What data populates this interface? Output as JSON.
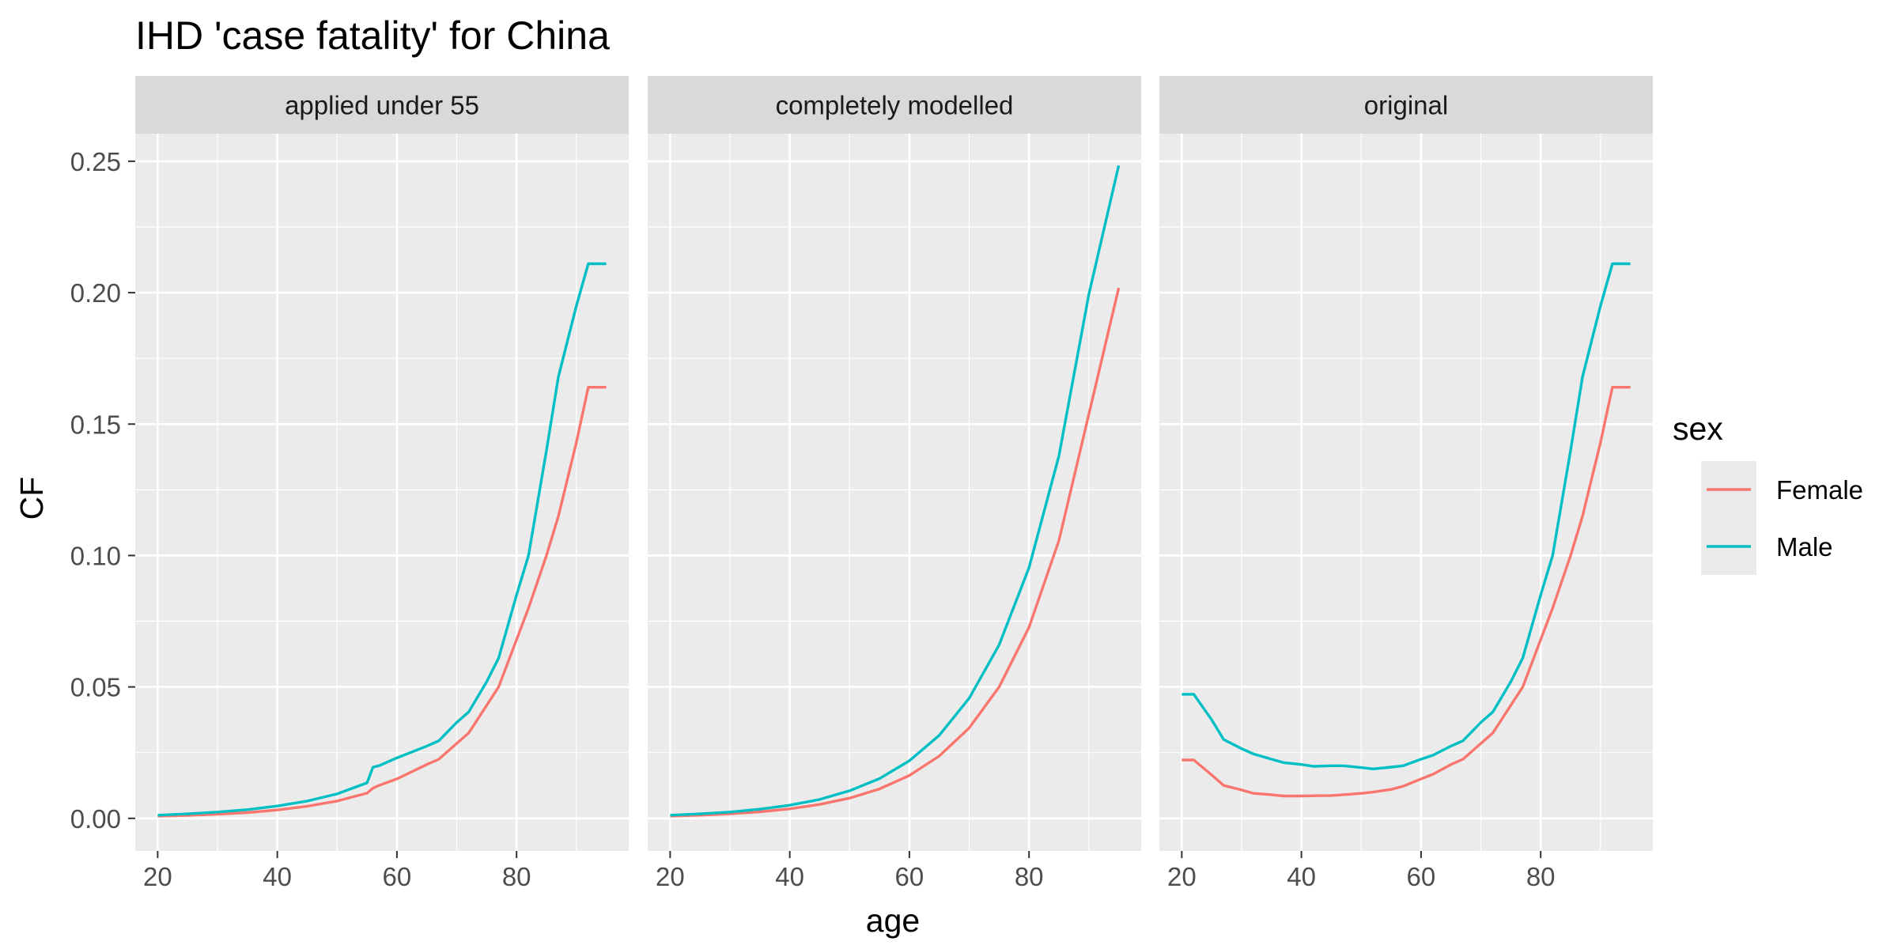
{
  "chart_data": {
    "type": "line",
    "title": "IHD 'case fatality' for China",
    "xlabel": "age",
    "ylabel": "CF",
    "xlim": [
      16.25,
      98.75
    ],
    "ylim": [
      -0.0124,
      0.2605
    ],
    "x_ticks": [
      20,
      40,
      60,
      80
    ],
    "x_tick_labels": [
      "20",
      "40",
      "60",
      "80"
    ],
    "y_ticks": [
      0,
      0.05,
      0.1,
      0.15,
      0.2,
      0.25
    ],
    "y_tick_labels": [
      "0.00",
      "0.05",
      "0.10",
      "0.15",
      "0.20",
      "0.25"
    ],
    "grid": true,
    "legend": {
      "title": "sex",
      "position": "right",
      "entries": [
        "Female",
        "Male"
      ]
    },
    "colors": {
      "Female": "#F8766D",
      "Male": "#00BFC4",
      "panel_bg": "#EBEBEB",
      "strip_bg": "#D9D9D9",
      "grid": "#FFFFFF"
    },
    "panels": [
      {
        "label": "applied under 55",
        "series": [
          {
            "name": "Female",
            "x": [
              20,
              25,
              30,
              35,
              40,
              45,
              50,
              55,
              56,
              57,
              60,
              65,
              67,
              70,
              72,
              75,
              77,
              80,
              82,
              85,
              87,
              90,
              92,
              95
            ],
            "y": [
              0.0008,
              0.0011,
              0.0016,
              0.0022,
              0.0032,
              0.0046,
              0.0066,
              0.0096,
              0.0115,
              0.0125,
              0.015,
              0.0205,
              0.0225,
              0.0285,
              0.0325,
              0.043,
              0.05,
              0.068,
              0.08,
              0.1,
              0.115,
              0.143,
              0.164,
              0.164
            ]
          },
          {
            "name": "Male",
            "x": [
              20,
              25,
              30,
              35,
              40,
              45,
              50,
              55,
              56,
              57,
              60,
              65,
              67,
              70,
              72,
              75,
              77,
              80,
              82,
              85,
              87,
              90,
              92,
              95
            ],
            "y": [
              0.0012,
              0.0017,
              0.0024,
              0.0033,
              0.0047,
              0.0066,
              0.0093,
              0.0135,
              0.0195,
              0.02,
              0.023,
              0.0275,
              0.0295,
              0.0365,
              0.0405,
              0.052,
              0.061,
              0.085,
              0.1,
              0.14,
              0.168,
              0.195,
              0.211,
              0.211
            ]
          }
        ]
      },
      {
        "label": "completely modelled",
        "series": [
          {
            "name": "Female",
            "x": [
              20,
              25,
              30,
              35,
              40,
              45,
              50,
              55,
              60,
              65,
              70,
              75,
              80,
              85,
              90,
              95
            ],
            "y": [
              0.0008,
              0.0012,
              0.0017,
              0.0025,
              0.0036,
              0.0053,
              0.0077,
              0.0112,
              0.0163,
              0.0237,
              0.0344,
              0.05,
              0.0727,
              0.1057,
              0.1537,
              0.2018
            ]
          },
          {
            "name": "Male",
            "x": [
              20,
              25,
              30,
              35,
              40,
              45,
              50,
              55,
              60,
              65,
              70,
              75,
              80,
              85,
              90,
              95
            ],
            "y": [
              0.0012,
              0.0017,
              0.0024,
              0.0035,
              0.005,
              0.0072,
              0.0105,
              0.0151,
              0.0219,
              0.0316,
              0.0457,
              0.066,
              0.0954,
              0.1379,
              0.1993,
              0.2484
            ]
          }
        ]
      },
      {
        "label": "original",
        "series": [
          {
            "name": "Female",
            "x": [
              20,
              22,
              25,
              27,
              30,
              32,
              35,
              37,
              40,
              42,
              45,
              47,
              50,
              52,
              55,
              57,
              60,
              62,
              65,
              67,
              70,
              72,
              75,
              77,
              80,
              82,
              85,
              87,
              90,
              92,
              95
            ],
            "y": [
              0.0222,
              0.0222,
              0.0165,
              0.0125,
              0.0108,
              0.0095,
              0.009,
              0.0085,
              0.0085,
              0.0086,
              0.0087,
              0.009,
              0.0095,
              0.01,
              0.011,
              0.0122,
              0.015,
              0.0168,
              0.0205,
              0.0225,
              0.0285,
              0.0325,
              0.043,
              0.05,
              0.068,
              0.08,
              0.1,
              0.115,
              0.143,
              0.164,
              0.164
            ]
          },
          {
            "name": "Male",
            "x": [
              20,
              22,
              25,
              27,
              30,
              32,
              35,
              37,
              40,
              42,
              45,
              47,
              50,
              52,
              55,
              57,
              60,
              62,
              65,
              67,
              70,
              72,
              75,
              77,
              80,
              82,
              85,
              87,
              90,
              92,
              95
            ],
            "y": [
              0.0472,
              0.0472,
              0.0375,
              0.03,
              0.0265,
              0.0245,
              0.0225,
              0.0212,
              0.0205,
              0.0198,
              0.02,
              0.02,
              0.0193,
              0.0188,
              0.0195,
              0.02,
              0.0225,
              0.024,
              0.0275,
              0.0295,
              0.0365,
              0.0405,
              0.052,
              0.061,
              0.085,
              0.1,
              0.14,
              0.168,
              0.195,
              0.211,
              0.211
            ]
          }
        ]
      }
    ]
  }
}
